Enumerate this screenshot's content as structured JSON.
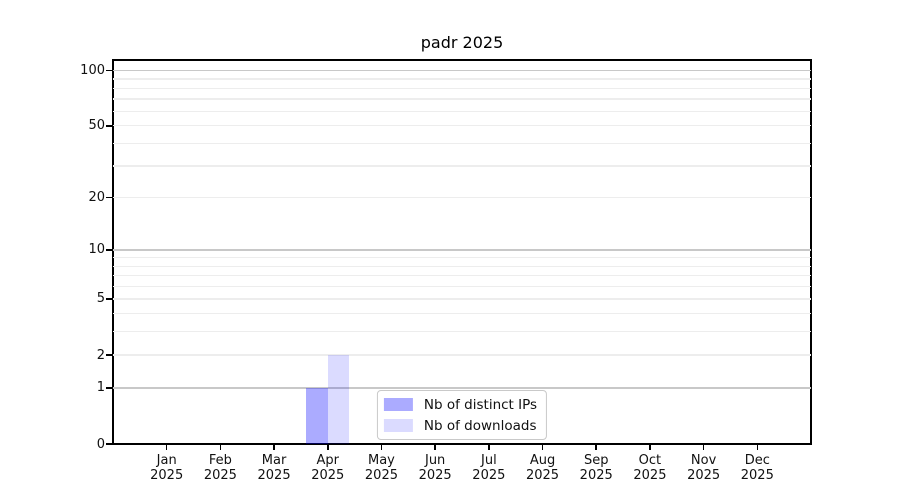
{
  "title": "padr 2025",
  "chart_data": {
    "type": "bar",
    "title": "padr 2025",
    "x_categories": [
      {
        "month": "Jan",
        "year": "2025"
      },
      {
        "month": "Feb",
        "year": "2025"
      },
      {
        "month": "Mar",
        "year": "2025"
      },
      {
        "month": "Apr",
        "year": "2025"
      },
      {
        "month": "May",
        "year": "2025"
      },
      {
        "month": "Jun",
        "year": "2025"
      },
      {
        "month": "Jul",
        "year": "2025"
      },
      {
        "month": "Aug",
        "year": "2025"
      },
      {
        "month": "Sep",
        "year": "2025"
      },
      {
        "month": "Oct",
        "year": "2025"
      },
      {
        "month": "Nov",
        "year": "2025"
      },
      {
        "month": "Dec",
        "year": "2025"
      }
    ],
    "series": [
      {
        "name": "Nb of distinct IPs",
        "color": "rgba(0,0,255,0.33)",
        "values": [
          0,
          0,
          0,
          1,
          0,
          0,
          0,
          0,
          0,
          0,
          0,
          0
        ]
      },
      {
        "name": "Nb of downloads",
        "color": "rgba(0,0,255,0.14)",
        "values": [
          0,
          0,
          0,
          2,
          0,
          0,
          0,
          0,
          0,
          0,
          0,
          0
        ]
      }
    ],
    "yscale": "log1p",
    "ylim": [
      0,
      114
    ],
    "yticks_labeled": [
      0,
      1,
      2,
      5,
      10,
      20,
      50,
      100
    ],
    "gridlines_major": [
      1,
      10,
      100
    ],
    "gridlines_minor": [
      2,
      3,
      4,
      5,
      6,
      7,
      8,
      9,
      20,
      30,
      40,
      50,
      60,
      70,
      80,
      90
    ],
    "grid": true,
    "legend_position": "lower center",
    "xlabel": "",
    "ylabel": ""
  }
}
